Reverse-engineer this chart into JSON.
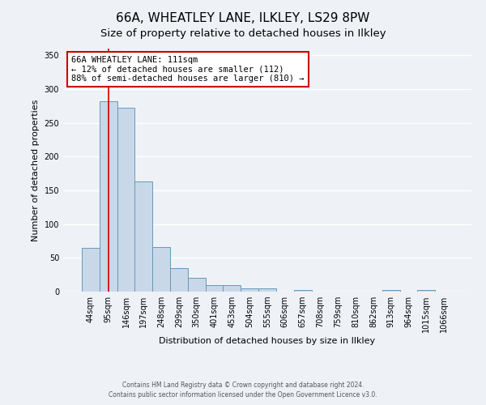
{
  "title": "66A, WHEATLEY LANE, ILKLEY, LS29 8PW",
  "subtitle": "Size of property relative to detached houses in Ilkley",
  "xlabel": "Distribution of detached houses by size in Ilkley",
  "ylabel": "Number of detached properties",
  "bar_labels": [
    "44sqm",
    "95sqm",
    "146sqm",
    "197sqm",
    "248sqm",
    "299sqm",
    "350sqm",
    "401sqm",
    "453sqm",
    "504sqm",
    "555sqm",
    "606sqm",
    "657sqm",
    "708sqm",
    "759sqm",
    "810sqm",
    "862sqm",
    "913sqm",
    "964sqm",
    "1015sqm",
    "1066sqm"
  ],
  "bar_values": [
    65,
    282,
    273,
    163,
    66,
    35,
    20,
    10,
    10,
    5,
    5,
    0,
    3,
    0,
    0,
    0,
    0,
    3,
    0,
    3,
    0
  ],
  "bar_color": "#c8d8e8",
  "bar_edge_color": "#6699bb",
  "vline_x": 1,
  "vline_color": "#cc0000",
  "annotation_text": "66A WHEATLEY LANE: 111sqm\n← 12% of detached houses are smaller (112)\n88% of semi-detached houses are larger (810) →",
  "annotation_box_color": "#ffffff",
  "annotation_box_edge_color": "#cc0000",
  "ylim": [
    0,
    360
  ],
  "yticks": [
    0,
    50,
    100,
    150,
    200,
    250,
    300,
    350
  ],
  "footer_line1": "Contains HM Land Registry data © Crown copyright and database right 2024.",
  "footer_line2": "Contains public sector information licensed under the Open Government Licence v3.0.",
  "background_color": "#eef2f7",
  "grid_color": "#ffffff",
  "title_fontsize": 11,
  "subtitle_fontsize": 9.5,
  "annotation_fontsize": 7.5,
  "axis_label_fontsize": 8,
  "tick_fontsize": 7
}
